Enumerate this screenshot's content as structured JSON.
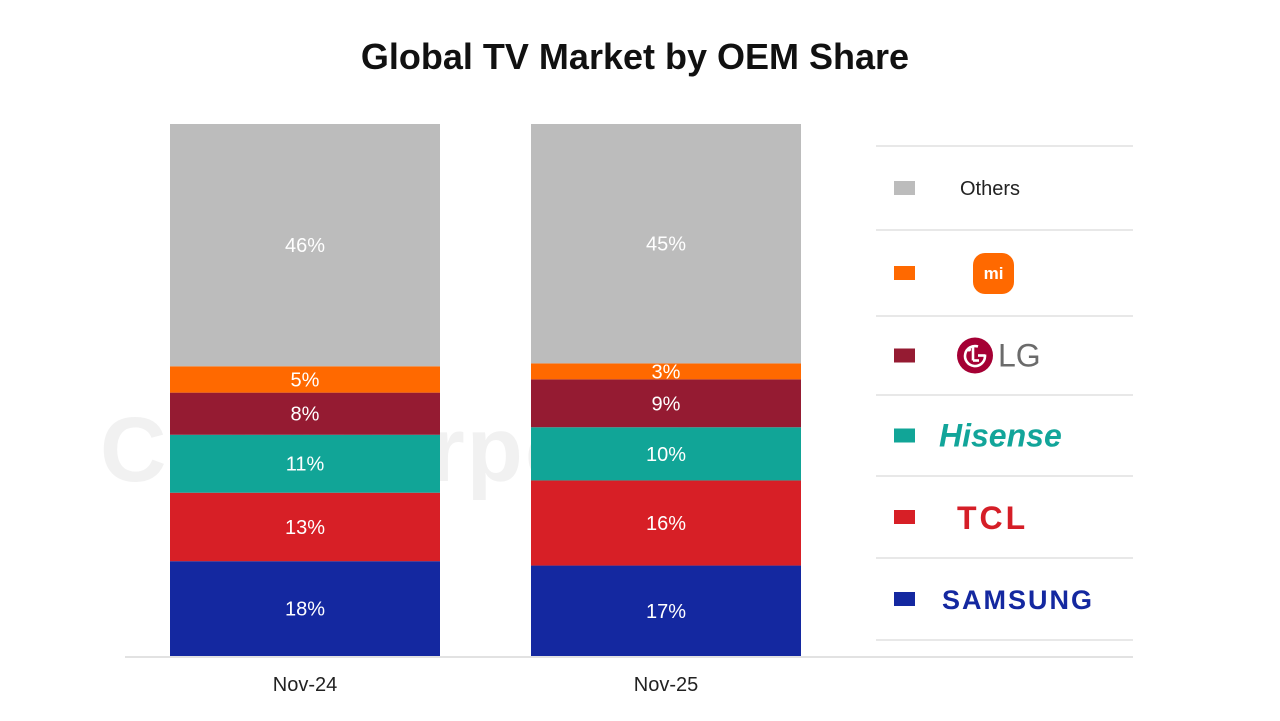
{
  "chart_data": {
    "type": "bar",
    "stacked": true,
    "title": "Global TV Market by OEM Share",
    "categories": [
      "Nov-24",
      "Nov-25"
    ],
    "series": [
      {
        "name": "SAMSUNG",
        "values": [
          18,
          17
        ],
        "color": "#1428a0",
        "labels": [
          "18%",
          "17%"
        ]
      },
      {
        "name": "TCL",
        "values": [
          13,
          16
        ],
        "color": "#d71f26",
        "labels": [
          "13%",
          "16%"
        ]
      },
      {
        "name": "Hisense",
        "values": [
          11,
          10
        ],
        "color": "#11a597",
        "labels": [
          "11%",
          "10%"
        ]
      },
      {
        "name": "LG",
        "values": [
          8,
          9
        ],
        "color": "#951b32",
        "labels": [
          "8%",
          "9%"
        ]
      },
      {
        "name": "mi",
        "values": [
          5,
          3
        ],
        "color": "#ff6900",
        "labels": [
          "5%",
          "3%"
        ]
      },
      {
        "name": "Others",
        "values": [
          46,
          45
        ],
        "color": "#bcbcbc",
        "labels": [
          "46%",
          "45%"
        ]
      }
    ],
    "ylim": [
      0,
      100
    ],
    "grid": false,
    "legend_position": "right",
    "legend_order": [
      "Others",
      "mi",
      "LG",
      "Hisense",
      "TCL",
      "SAMSUNG"
    ]
  },
  "watermark": "Counterpoint"
}
